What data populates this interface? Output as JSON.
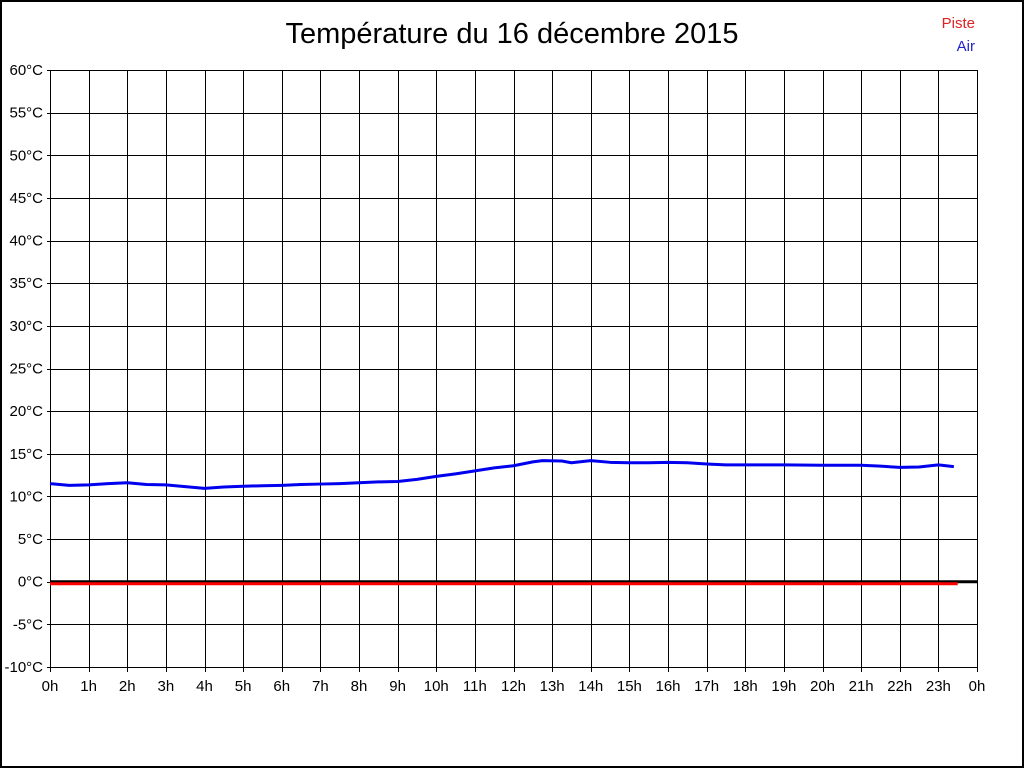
{
  "page": {
    "title": "Température du 16 décembre 2015"
  },
  "legend": {
    "items": [
      {
        "label": "Piste",
        "color": "#dd2222"
      },
      {
        "label": "Air",
        "color": "#2222cc"
      }
    ]
  },
  "chart_data": {
    "type": "line",
    "title": "Température du 16 décembre 2015",
    "grid": true,
    "legend_position": "top-right",
    "x_axis": {
      "label": "",
      "unit": "h",
      "min": 0,
      "max": 24,
      "tick_values": [
        0,
        1,
        2,
        3,
        4,
        5,
        6,
        7,
        8,
        9,
        10,
        11,
        12,
        13,
        14,
        15,
        16,
        17,
        18,
        19,
        20,
        21,
        22,
        23,
        24
      ],
      "tick_labels": [
        "0h",
        "1h",
        "2h",
        "3h",
        "4h",
        "5h",
        "6h",
        "7h",
        "8h",
        "9h",
        "10h",
        "11h",
        "12h",
        "13h",
        "14h",
        "15h",
        "16h",
        "17h",
        "18h",
        "19h",
        "20h",
        "21h",
        "22h",
        "23h",
        "0h"
      ]
    },
    "y_axis": {
      "label": "",
      "unit": "°C",
      "min": -10,
      "max": 60,
      "step": 5,
      "tick_labels_top_to_bottom": [
        "60°C",
        "55°C",
        "50°C",
        "45°C",
        "40°C",
        "35°C",
        "30°C",
        "25°C",
        "20°C",
        "15°C",
        "10°C",
        "5°C",
        "0°C",
        "-5°C",
        "-10°C"
      ]
    },
    "zero_axis_line": {
      "value": 0,
      "color": "#000000"
    },
    "series": [
      {
        "name": "Piste",
        "color": "#ff0000",
        "points": [
          [
            0,
            0.0
          ],
          [
            23.5,
            0.0
          ]
        ]
      },
      {
        "name": "Air",
        "color": "#0000ee",
        "points": [
          [
            0,
            11.5
          ],
          [
            0.25,
            11.4
          ],
          [
            0.5,
            11.3
          ],
          [
            1,
            11.35
          ],
          [
            1.5,
            11.5
          ],
          [
            2,
            11.6
          ],
          [
            2.5,
            11.4
          ],
          [
            3,
            11.35
          ],
          [
            3.5,
            11.15
          ],
          [
            4,
            10.95
          ],
          [
            4.5,
            11.1
          ],
          [
            5,
            11.2
          ],
          [
            5.5,
            11.25
          ],
          [
            6,
            11.3
          ],
          [
            6.5,
            11.4
          ],
          [
            7,
            11.45
          ],
          [
            7.5,
            11.5
          ],
          [
            8,
            11.6
          ],
          [
            8.5,
            11.7
          ],
          [
            9,
            11.75
          ],
          [
            9.5,
            12.0
          ],
          [
            10,
            12.35
          ],
          [
            10.5,
            12.65
          ],
          [
            11,
            13.0
          ],
          [
            11.5,
            13.35
          ],
          [
            12,
            13.6
          ],
          [
            12.5,
            14.05
          ],
          [
            12.75,
            14.2
          ],
          [
            13.25,
            14.15
          ],
          [
            13.5,
            13.95
          ],
          [
            14,
            14.2
          ],
          [
            14.5,
            14.0
          ],
          [
            15,
            13.95
          ],
          [
            15.5,
            13.95
          ],
          [
            16,
            14.0
          ],
          [
            16.5,
            13.95
          ],
          [
            17,
            13.8
          ],
          [
            17.5,
            13.7
          ],
          [
            18,
            13.7
          ],
          [
            19,
            13.7
          ],
          [
            20,
            13.65
          ],
          [
            21,
            13.65
          ],
          [
            21.5,
            13.55
          ],
          [
            22,
            13.4
          ],
          [
            22.5,
            13.45
          ],
          [
            23,
            13.7
          ],
          [
            23.4,
            13.5
          ]
        ]
      }
    ]
  }
}
